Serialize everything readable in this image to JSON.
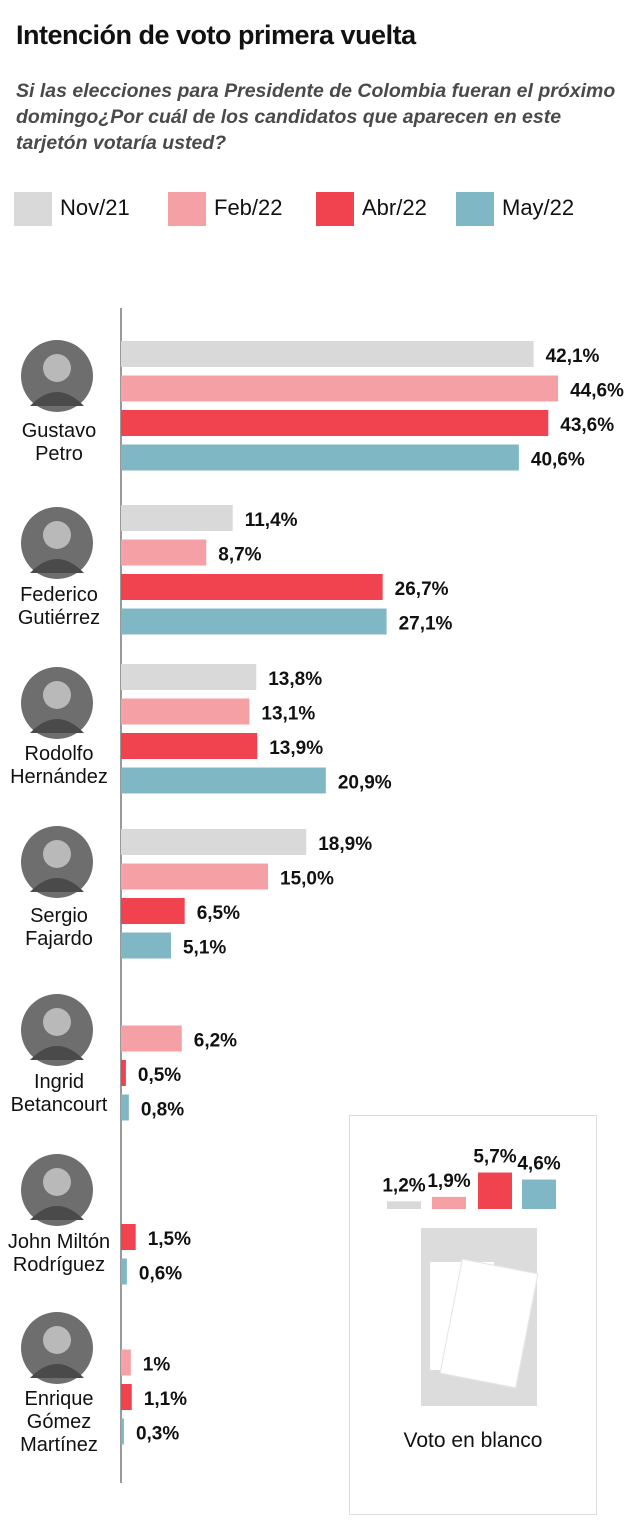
{
  "header": {
    "title": "Intención de voto primera vuelta",
    "subtitle": "Si las elecciones para Presidente de Colombia fueran el próximo domingo¿Por cuál de los candidatos que aparecen en este tarjetón votaría usted?"
  },
  "legend": [
    {
      "label": "Nov/21",
      "color": "#d9d9d9"
    },
    {
      "label": "Feb/22",
      "color": "#f5a0a5"
    },
    {
      "label": "Abr/22",
      "color": "#f0434f"
    },
    {
      "label": "May/22",
      "color": "#80b7c5"
    }
  ],
  "chart_data": {
    "type": "bar",
    "orientation": "horizontal",
    "title": "Intención de voto primera vuelta",
    "categories": [
      "Gustavo Petro",
      "Federico Gutiérrez",
      "Rodolfo Hernández",
      "Sergio Fajardo",
      "Ingrid Betancourt",
      "John Miltón Rodríguez",
      "Enrique Gómez Martínez"
    ],
    "category_lines": [
      [
        "Gustavo",
        "Petro"
      ],
      [
        "Federico",
        "Gutiérrez"
      ],
      [
        "Rodolfo",
        "Hernández"
      ],
      [
        "Sergio",
        "Fajardo"
      ],
      [
        "Ingrid",
        "Betancourt"
      ],
      [
        "John Miltón",
        "Rodríguez"
      ],
      [
        "Enrique",
        "Gómez",
        "Martínez"
      ]
    ],
    "series": [
      {
        "name": "Nov/21",
        "color": "#d9d9d9",
        "values": [
          42.1,
          11.4,
          13.8,
          18.9,
          null,
          null,
          null
        ],
        "labels": [
          "42,1%",
          "11,4%",
          "13,8%",
          "18,9%",
          null,
          null,
          null
        ]
      },
      {
        "name": "Feb/22",
        "color": "#f5a0a5",
        "values": [
          44.6,
          8.7,
          13.1,
          15.0,
          6.2,
          null,
          1.0
        ],
        "labels": [
          "44,6%",
          "8,7%",
          "13,1%",
          "15,0%",
          "6,2%",
          null,
          "1%"
        ]
      },
      {
        "name": "Abr/22",
        "color": "#f0434f",
        "values": [
          43.6,
          26.7,
          13.9,
          6.5,
          0.5,
          1.5,
          1.1
        ],
        "labels": [
          "43,6%",
          "26,7%",
          "13,9%",
          "6,5%",
          "0,5%",
          "1,5%",
          "1,1%"
        ]
      },
      {
        "name": "May/22",
        "color": "#80b7c5",
        "values": [
          40.6,
          27.1,
          20.9,
          5.1,
          0.8,
          0.6,
          0.3
        ],
        "labels": [
          "40,6%",
          "27,1%",
          "20,9%",
          "5,1%",
          "0,8%",
          "0,6%",
          "0,3%"
        ]
      }
    ],
    "blank_vote": {
      "label": "Voto en blanco",
      "values": [
        1.2,
        1.9,
        5.7,
        4.6
      ],
      "labels": [
        "1,2%",
        "1,9%",
        "5,7%",
        "4,6%"
      ]
    }
  }
}
